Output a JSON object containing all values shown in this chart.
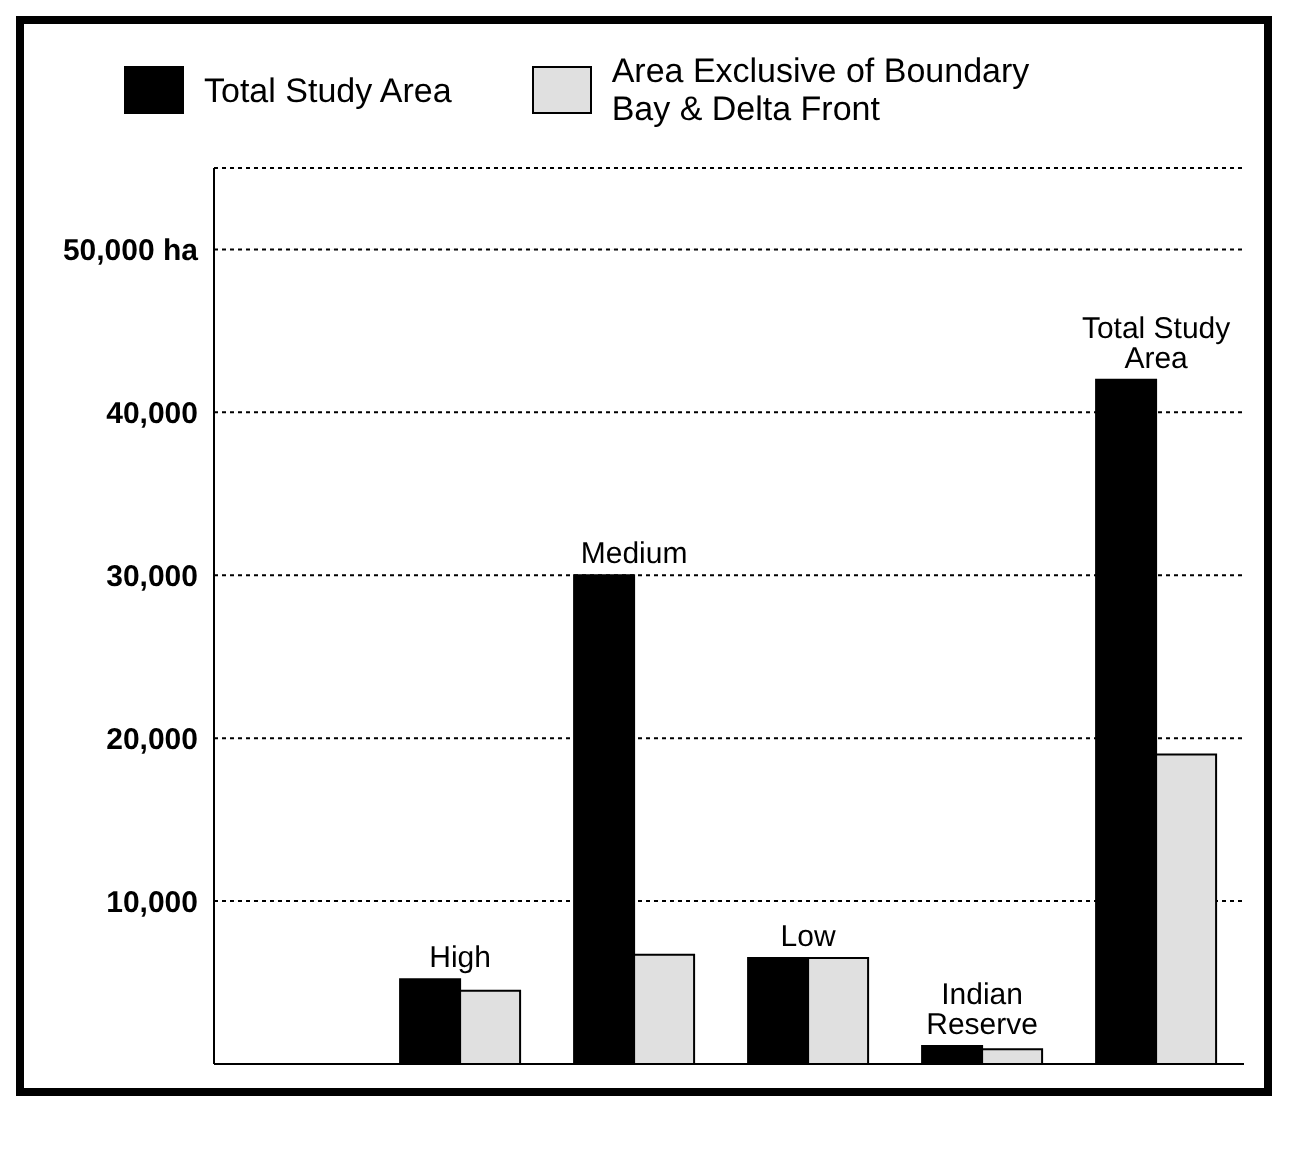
{
  "chart_data": {
    "type": "bar",
    "categories": [
      "High",
      "Medium",
      "Low",
      "Indian Reserve",
      "Total Study Area"
    ],
    "series": [
      {
        "name": "Total Study Area",
        "color": "#000000",
        "values": [
          5200,
          30000,
          6500,
          1100,
          42000
        ]
      },
      {
        "name": "Area Exclusive of Boundary Bay & Delta Front",
        "color": "#e0e0e0",
        "values": [
          4500,
          6700,
          6500,
          900,
          19000
        ]
      }
    ],
    "ylim": [
      0,
      55000
    ],
    "yticks": [
      {
        "value": 10000,
        "label": "10,000"
      },
      {
        "value": 20000,
        "label": "20,000"
      },
      {
        "value": 30000,
        "label": "30,000"
      },
      {
        "value": 40000,
        "label": "40,000"
      },
      {
        "value": 50000,
        "label": "50,000 ha"
      }
    ],
    "grid": "y",
    "legend": "top",
    "tick_labels": "y"
  }
}
